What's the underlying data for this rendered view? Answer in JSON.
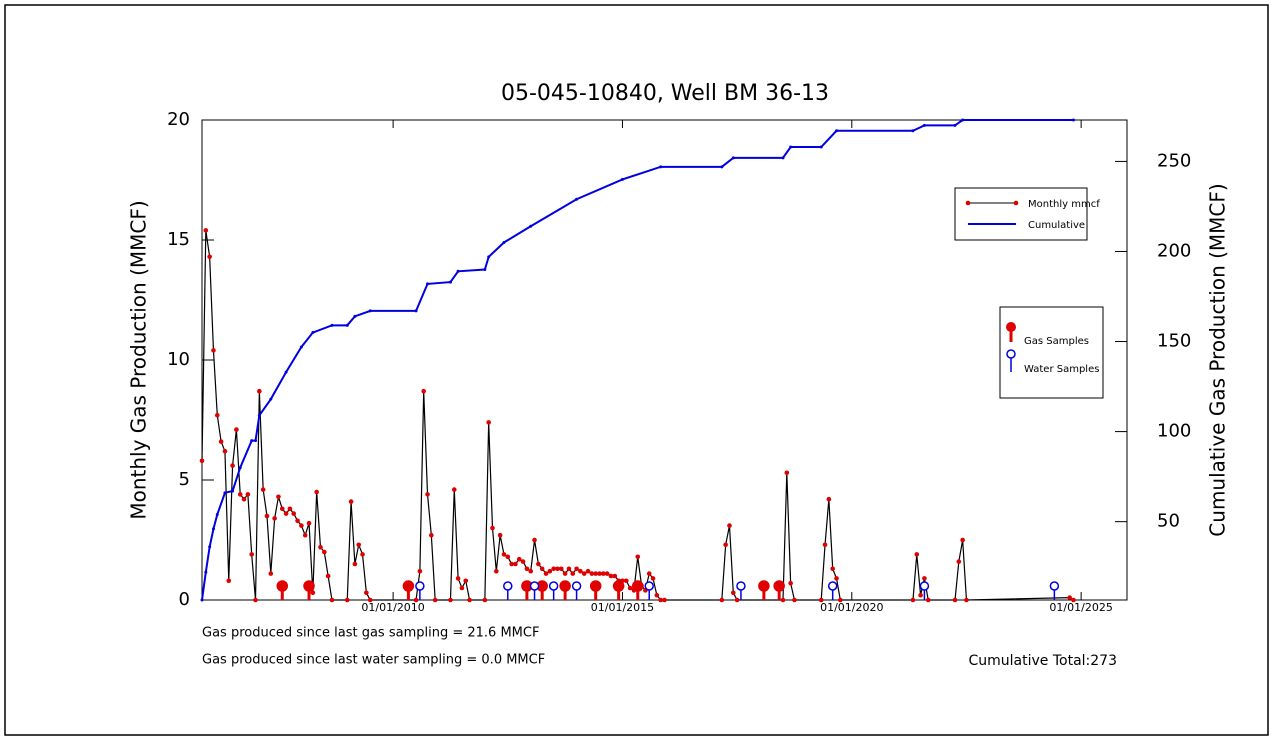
{
  "chart_data": {
    "type": "line",
    "title": "05-045-10840, Well BM 36-13",
    "y_label": "Monthly Gas Production (MMCF)",
    "y2_label": "Cumulative Gas Production (MMCF)",
    "xlim": [
      "2005-11",
      "2026-01"
    ],
    "xticks": [
      {
        "value": "2010-01",
        "label": "01/01/2010"
      },
      {
        "value": "2015-01",
        "label": "01/01/2015"
      },
      {
        "value": "2020-01",
        "label": "01/01/2020"
      },
      {
        "value": "2025-01",
        "label": "01/01/2025"
      }
    ],
    "ylim": [
      0,
      20
    ],
    "yticks": [
      0,
      5,
      10,
      15,
      20
    ],
    "y2lim": [
      6.5,
      273
    ],
    "y2ticks": [
      50,
      100,
      150,
      200,
      250
    ],
    "series": [
      {
        "name": "Monthly mmcf",
        "color": "#000000",
        "marker_color": "#e00000",
        "x": [
          "2005-11",
          "2005-12",
          "2006-01",
          "2006-02",
          "2006-03",
          "2006-04",
          "2006-05",
          "2006-06",
          "2006-07",
          "2006-08",
          "2006-09",
          "2006-10",
          "2006-11",
          "2006-12",
          "2007-01",
          "2007-02",
          "2007-03",
          "2007-04",
          "2007-05",
          "2007-06",
          "2007-07",
          "2007-08",
          "2007-09",
          "2007-10",
          "2007-11",
          "2007-12",
          "2008-01",
          "2008-02",
          "2008-03",
          "2008-04",
          "2008-05",
          "2008-06",
          "2008-07",
          "2008-08",
          "2008-09",
          "2009-01",
          "2009-02",
          "2009-03",
          "2009-04",
          "2009-05",
          "2009-06",
          "2009-07",
          "2010-07",
          "2010-08",
          "2010-09",
          "2010-10",
          "2010-11",
          "2010-12",
          "2011-04",
          "2011-05",
          "2011-06",
          "2011-07",
          "2011-08",
          "2011-09",
          "2012-01",
          "2012-02",
          "2012-03",
          "2012-04",
          "2012-05",
          "2012-06",
          "2012-07",
          "2012-08",
          "2012-09",
          "2012-10",
          "2012-11",
          "2012-12",
          "2013-01",
          "2013-02",
          "2013-03",
          "2013-04",
          "2013-05",
          "2013-06",
          "2013-07",
          "2013-08",
          "2013-09",
          "2013-10",
          "2013-11",
          "2013-12",
          "2014-01",
          "2014-02",
          "2014-03",
          "2014-04",
          "2014-05",
          "2014-06",
          "2014-07",
          "2014-08",
          "2014-09",
          "2014-10",
          "2014-11",
          "2014-12",
          "2015-01",
          "2015-02",
          "2015-03",
          "2015-04",
          "2015-05",
          "2015-06",
          "2015-07",
          "2015-08",
          "2015-09",
          "2015-10",
          "2015-11",
          "2015-12",
          "2017-03",
          "2017-04",
          "2017-05",
          "2017-06",
          "2017-07",
          "2018-07",
          "2018-08",
          "2018-09",
          "2018-10",
          "2019-05",
          "2019-06",
          "2019-07",
          "2019-08",
          "2019-09",
          "2019-10",
          "2021-05",
          "2021-06",
          "2021-07",
          "2021-08",
          "2021-09",
          "2022-04",
          "2022-05",
          "2022-06",
          "2022-07",
          "2024-10",
          "2024-11"
        ],
        "values": [
          5.8,
          15.4,
          14.3,
          10.4,
          7.7,
          6.6,
          6.2,
          0.8,
          5.6,
          7.1,
          4.4,
          4.2,
          4.4,
          1.9,
          0,
          8.7,
          4.6,
          3.5,
          1.1,
          3.4,
          4.3,
          3.8,
          3.6,
          3.8,
          3.6,
          3.3,
          3.1,
          2.7,
          3.2,
          0.3,
          4.5,
          2.2,
          2.0,
          1.0,
          0,
          0,
          4.1,
          1.5,
          2.3,
          1.9,
          0.3,
          0,
          0,
          1.2,
          8.7,
          4.4,
          2.7,
          0,
          0,
          4.6,
          0.9,
          0.5,
          0.8,
          0,
          0,
          7.4,
          3.0,
          1.2,
          2.7,
          1.9,
          1.8,
          1.5,
          1.5,
          1.7,
          1.6,
          1.3,
          1.2,
          2.5,
          1.5,
          1.3,
          1.1,
          1.2,
          1.3,
          1.3,
          1.3,
          1.1,
          1.3,
          1.1,
          1.3,
          1.2,
          1.1,
          1.2,
          1.1,
          1.1,
          1.1,
          1.1,
          1.1,
          1.0,
          1.0,
          0.8,
          0.8,
          0.8,
          0.5,
          0.4,
          1.8,
          0.6,
          0.4,
          1.1,
          0.9,
          0.2,
          0,
          0,
          0,
          2.3,
          3.1,
          0.3,
          0,
          0,
          5.3,
          0.7,
          0,
          0,
          2.3,
          4.2,
          1.3,
          0.9,
          0,
          0,
          1.9,
          0.2,
          0.9,
          0,
          0,
          1.6,
          2.5,
          0,
          0.1,
          0
        ]
      },
      {
        "name": "Cumulative",
        "color": "#0000e0",
        "axis": "y2",
        "x": [
          "2005-11",
          "2005-12",
          "2006-01",
          "2006-02",
          "2006-03",
          "2006-05",
          "2006-07",
          "2006-09",
          "2006-12",
          "2007-01",
          "2007-02",
          "2007-05",
          "2007-09",
          "2008-01",
          "2008-04",
          "2008-09",
          "2009-01",
          "2009-03",
          "2009-07",
          "2010-07",
          "2010-10",
          "2011-04",
          "2011-06",
          "2012-01",
          "2012-02",
          "2012-06",
          "2013-01",
          "2014-01",
          "2015-01",
          "2015-11",
          "2017-03",
          "2017-06",
          "2018-07",
          "2018-09",
          "2019-05",
          "2019-09",
          "2021-05",
          "2021-08",
          "2022-04",
          "2022-06",
          "2024-11"
        ],
        "values": [
          6.5,
          22,
          36,
          46,
          54,
          66,
          67,
          80,
          95,
          95,
          109,
          118,
          133,
          147,
          155,
          159,
          159,
          164,
          167,
          167,
          182,
          183,
          189,
          190,
          197,
          205,
          214,
          229,
          240,
          247,
          247,
          252,
          252,
          258,
          258,
          267,
          267,
          270,
          270,
          273,
          273
        ]
      }
    ],
    "samples": [
      {
        "name": "Gas Samples",
        "color": "#e00000",
        "dates": [
          "2007-08",
          "2008-03",
          "2010-05",
          "2012-12",
          "2013-04",
          "2013-10",
          "2014-06",
          "2014-12",
          "2015-05",
          "2018-02",
          "2018-06"
        ]
      },
      {
        "name": "Water Samples",
        "color": "#0000e0",
        "dates": [
          "2010-08",
          "2012-07",
          "2013-02",
          "2013-07",
          "2014-01",
          "2015-08",
          "2017-08",
          "2019-08",
          "2021-08",
          "2024-06"
        ]
      }
    ],
    "notes": [
      "Gas produced since last gas sampling = 21.6 MMCF",
      "Gas produced since last water sampling = 0.0 MMCF"
    ],
    "total": "Cumulative Total:273"
  }
}
